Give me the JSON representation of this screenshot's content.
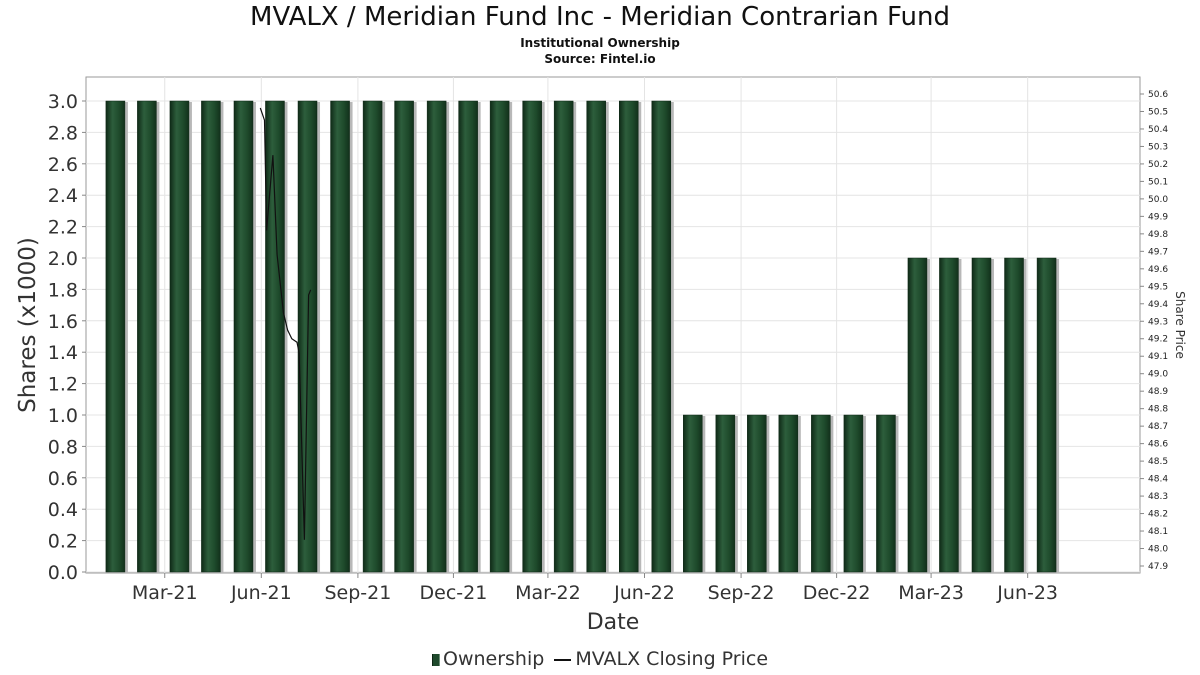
{
  "title": "MVALX / Meridian Fund Inc - Meridian Contrarian Fund",
  "subtitle1": "Institutional Ownership",
  "subtitle2": "Source: Fintel.io",
  "legend": {
    "ownership": "Ownership",
    "price": "MVALX Closing Price"
  },
  "colors": {
    "bar": "#1f4a2c",
    "price_line": "#111111",
    "grid": "#e4e4e4"
  },
  "chart_data": {
    "type": "bar",
    "xlabel": "Date",
    "ylabel": "Shares (x1000)",
    "y2label": "Share Price",
    "ylim": [
      0,
      3.15
    ],
    "y2lim": [
      47.85,
      50.66
    ],
    "yticks": [
      "0.0",
      "0.2",
      "0.4",
      "0.6",
      "0.8",
      "1.0",
      "1.2",
      "1.4",
      "1.6",
      "1.8",
      "2.0",
      "2.2",
      "2.4",
      "2.6",
      "2.8",
      "3.0"
    ],
    "y2ticks": [
      "47.9",
      "48.0",
      "48.1",
      "48.2",
      "48.3",
      "48.4",
      "48.5",
      "48.6",
      "48.7",
      "48.8",
      "48.9",
      "49.0",
      "49.1",
      "49.2",
      "49.3",
      "49.4",
      "49.5",
      "49.6",
      "49.7",
      "49.8",
      "49.9",
      "50.0",
      "50.1",
      "50.2",
      "50.3",
      "50.4",
      "50.5",
      "50.6"
    ],
    "x_range": [
      "2020-12-16",
      "2023-09-16"
    ],
    "xticks": [
      {
        "label": "Mar-21",
        "date": "2021-03-01"
      },
      {
        "label": "Jun-21",
        "date": "2021-06-01"
      },
      {
        "label": "Sep-21",
        "date": "2021-09-01"
      },
      {
        "label": "Dec-21",
        "date": "2021-12-01"
      },
      {
        "label": "Mar-22",
        "date": "2022-03-01"
      },
      {
        "label": "Jun-22",
        "date": "2022-06-01"
      },
      {
        "label": "Sep-22",
        "date": "2022-09-01"
      },
      {
        "label": "Dec-22",
        "date": "2022-12-01"
      },
      {
        "label": "Mar-23",
        "date": "2023-03-01"
      },
      {
        "label": "Jun-23",
        "date": "2023-06-01"
      }
    ],
    "grid": true,
    "legend_position": "bottom",
    "series": [
      {
        "name": "Ownership",
        "type": "bar",
        "points": [
          {
            "date": "2021-01-13",
            "value": 3.0
          },
          {
            "date": "2021-02-12",
            "value": 3.0
          },
          {
            "date": "2021-03-15",
            "value": 3.0
          },
          {
            "date": "2021-04-14",
            "value": 3.0
          },
          {
            "date": "2021-05-15",
            "value": 3.0
          },
          {
            "date": "2021-06-14",
            "value": 3.0
          },
          {
            "date": "2021-07-15",
            "value": 3.0
          },
          {
            "date": "2021-08-15",
            "value": 3.0
          },
          {
            "date": "2021-09-15",
            "value": 3.0
          },
          {
            "date": "2021-10-15",
            "value": 3.0
          },
          {
            "date": "2021-11-15",
            "value": 3.0
          },
          {
            "date": "2021-12-15",
            "value": 3.0
          },
          {
            "date": "2022-01-14",
            "value": 3.0
          },
          {
            "date": "2022-02-14",
            "value": 3.0
          },
          {
            "date": "2022-03-16",
            "value": 3.0
          },
          {
            "date": "2022-04-16",
            "value": 3.0
          },
          {
            "date": "2022-05-17",
            "value": 3.0
          },
          {
            "date": "2022-06-17",
            "value": 3.0
          },
          {
            "date": "2022-07-17",
            "value": 1.0
          },
          {
            "date": "2022-08-17",
            "value": 1.0
          },
          {
            "date": "2022-09-16",
            "value": 1.0
          },
          {
            "date": "2022-10-16",
            "value": 1.0
          },
          {
            "date": "2022-11-16",
            "value": 1.0
          },
          {
            "date": "2022-12-17",
            "value": 1.0
          },
          {
            "date": "2023-01-17",
            "value": 1.0
          },
          {
            "date": "2023-02-16",
            "value": 2.0
          },
          {
            "date": "2023-03-18",
            "value": 2.0
          },
          {
            "date": "2023-04-18",
            "value": 2.0
          },
          {
            "date": "2023-05-19",
            "value": 2.0
          },
          {
            "date": "2023-06-19",
            "value": 2.0
          }
        ]
      },
      {
        "name": "MVALX Closing Price",
        "type": "line",
        "axis": "right",
        "points": [
          {
            "date": "2021-05-31",
            "value": 50.52
          },
          {
            "date": "2021-06-04",
            "value": 50.45
          },
          {
            "date": "2021-06-06",
            "value": 49.82
          },
          {
            "date": "2021-06-12",
            "value": 50.25
          },
          {
            "date": "2021-06-16",
            "value": 49.68
          },
          {
            "date": "2021-06-22",
            "value": 49.35
          },
          {
            "date": "2021-06-26",
            "value": 49.25
          },
          {
            "date": "2021-06-30",
            "value": 49.2
          },
          {
            "date": "2021-07-05",
            "value": 49.18
          },
          {
            "date": "2021-07-07",
            "value": 49.12
          },
          {
            "date": "2021-07-12",
            "value": 48.05
          },
          {
            "date": "2021-07-16",
            "value": 49.45
          },
          {
            "date": "2021-07-18",
            "value": 49.48
          }
        ]
      }
    ]
  }
}
